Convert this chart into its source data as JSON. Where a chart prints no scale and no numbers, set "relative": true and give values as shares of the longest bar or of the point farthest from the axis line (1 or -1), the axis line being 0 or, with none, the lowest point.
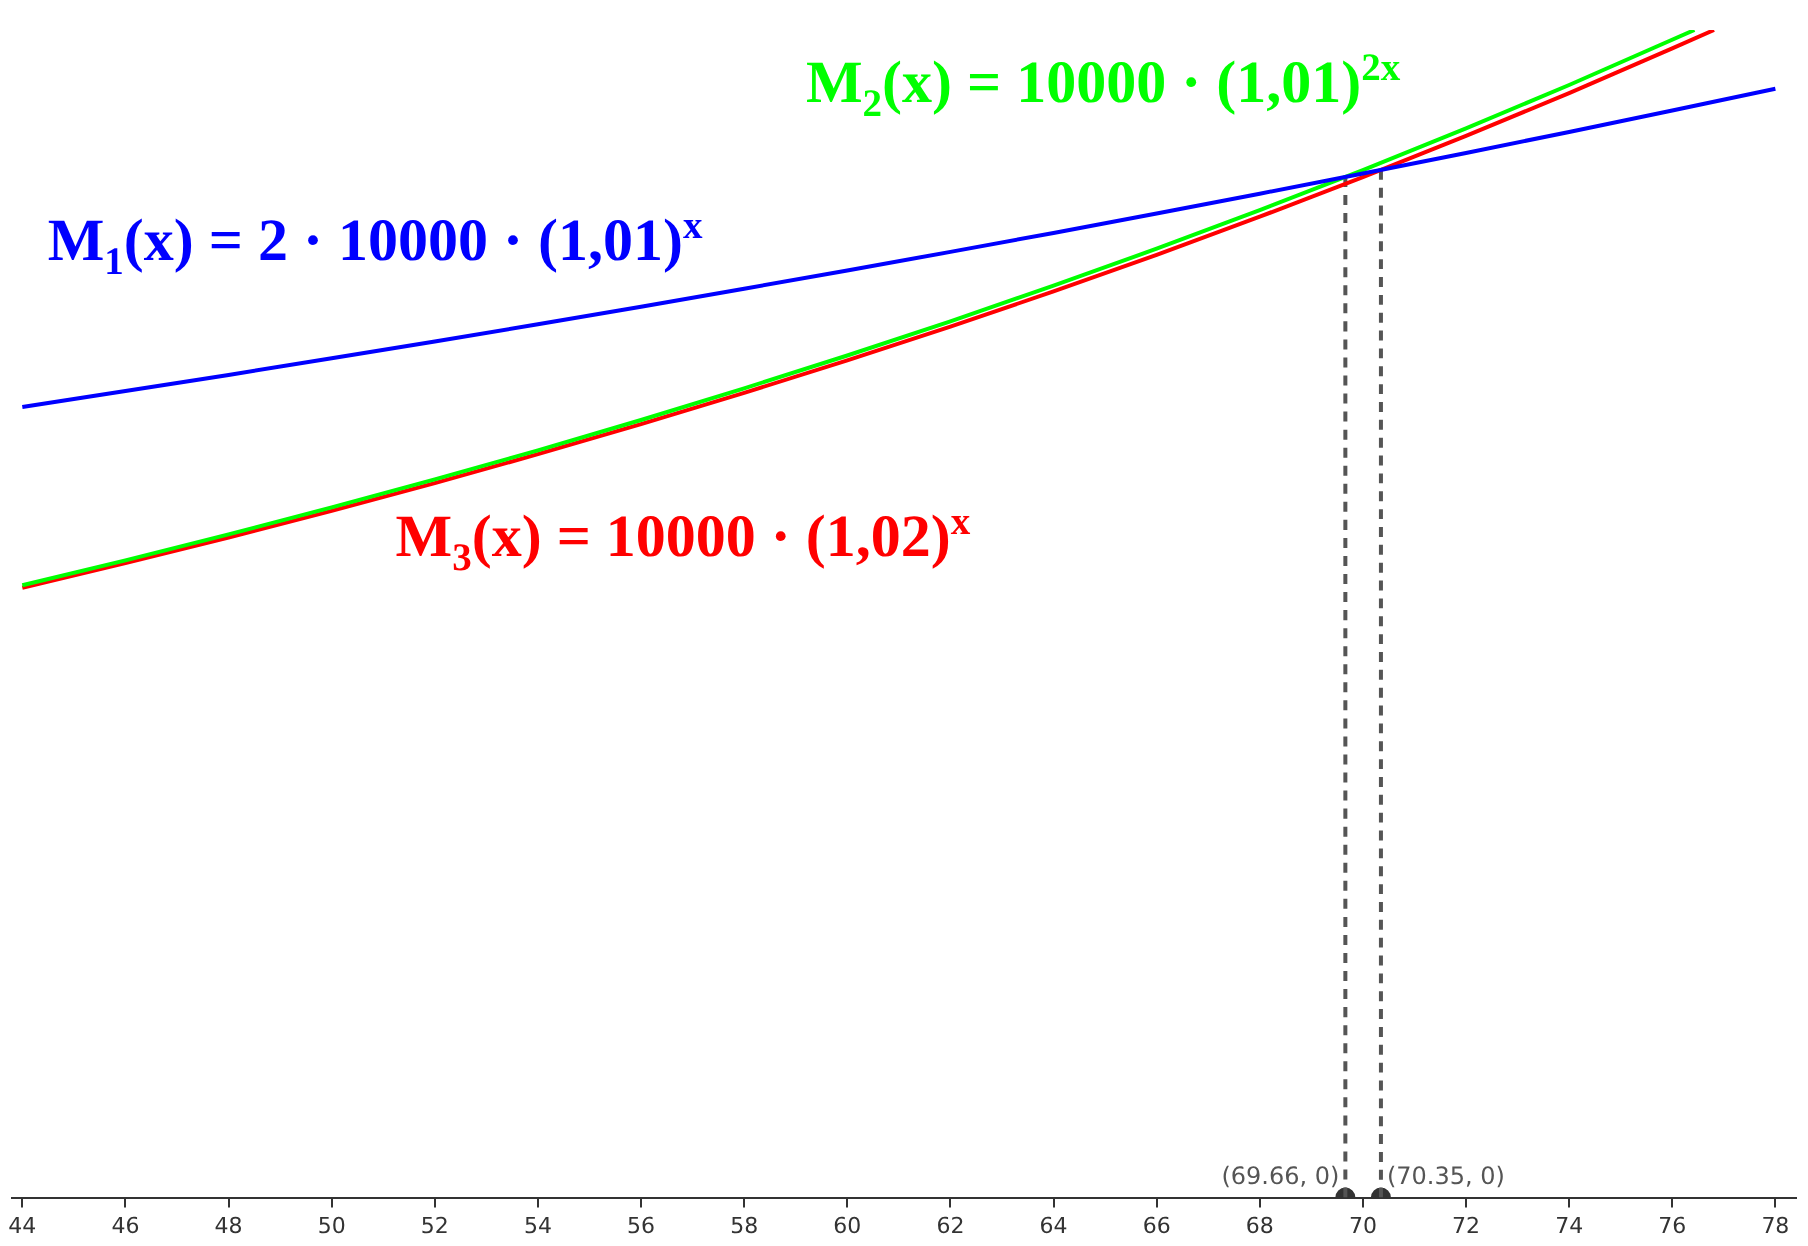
{
  "chart_data": {
    "type": "line",
    "relative": true,
    "xlim": [
      43.8,
      78.4
    ],
    "xticks": [
      44,
      46,
      48,
      50,
      52,
      54,
      56,
      58,
      60,
      62,
      64,
      66,
      68,
      70,
      72,
      74,
      76,
      78
    ],
    "legend": false,
    "grid": false,
    "marker": "none",
    "line_style": "solid",
    "series": [
      {
        "name": "M$_{1}$(x) = 2 · 10000 · (1,01)$^{x}$",
        "color": "#0000ff",
        "x": [
          44,
          46,
          48,
          50,
          52,
          54,
          56,
          58,
          60,
          62,
          64,
          66,
          68,
          70,
          72,
          74,
          76,
          78
        ],
        "values": [
          0.6771,
          0.6908,
          0.7046,
          0.7188,
          0.7332,
          0.748,
          0.763,
          0.7784,
          0.794,
          0.81,
          0.8262,
          0.8429,
          0.8598,
          0.8771,
          0.8947,
          0.9127,
          0.931,
          0.9497
        ]
      },
      {
        "name": "M$_{2}$(x) = 10000 · (1,01)$^{2x}$",
        "color": "#00ff00",
        "x": [
          44,
          46,
          48,
          50,
          52,
          54,
          56,
          58,
          60,
          62,
          64,
          66,
          68,
          70,
          72,
          74,
          76.43
        ],
        "values": [
          0.5245,
          0.5458,
          0.568,
          0.5911,
          0.6151,
          0.64,
          0.666,
          0.6931,
          0.7212,
          0.7505,
          0.781,
          0.8127,
          0.8457,
          0.88,
          0.9157,
          0.9529,
          1
        ]
      },
      {
        "name": "M$_{3}$(x) = 10000 · (1,02)$^{x}$",
        "color": "#ff0000",
        "x": [
          44,
          46,
          48,
          50,
          52,
          54,
          56,
          58,
          60,
          62,
          64,
          66,
          68,
          70,
          72,
          74,
          76,
          76.81
        ],
        "values": [
          0.5223,
          0.5434,
          0.5653,
          0.5882,
          0.6119,
          0.6367,
          0.6624,
          0.6892,
          0.717,
          0.7459,
          0.7761,
          0.8074,
          0.8401,
          0.874,
          0.9093,
          0.946,
          0.9843,
          1
        ]
      },
      {
        "type": "line",
        "line_style": "dashed",
        "color": "#555555",
        "x": [
          69.66,
          69.66
        ],
        "values": [
          0,
          0.8741
        ]
      },
      {
        "type": "line",
        "line_style": "dashed",
        "color": "#555555",
        "x": [
          70.35,
          70.35
        ],
        "values": [
          0,
          0.8802
        ]
      },
      {
        "type": "scatter",
        "marker": "circle",
        "color": "#333333",
        "x": [
          69.66,
          70.35
        ],
        "values": [
          0,
          0
        ]
      }
    ],
    "annotations": [
      {
        "text": "(69.66, 0)",
        "x": 69.66,
        "y": 0
      },
      {
        "text": "(70.35, 0)",
        "x": 70.35,
        "y": 0
      }
    ]
  }
}
